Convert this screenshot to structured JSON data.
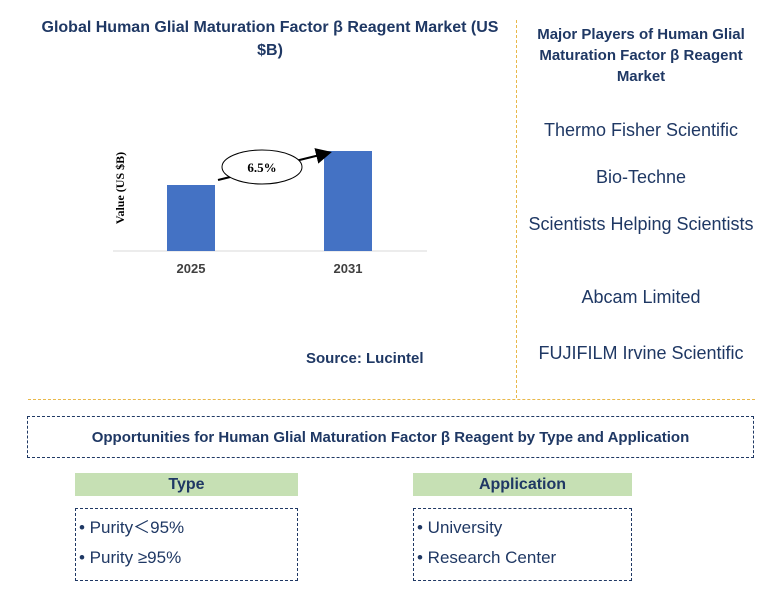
{
  "chart_data": {
    "type": "bar",
    "title": "Global Human Glial Maturation Factor β Reagent Market (US $B)",
    "categories": [
      "2025",
      "2031"
    ],
    "values": [
      0.66,
      1.0
    ],
    "ylabel": "Value (US $B)",
    "xlabel": "",
    "ylim": [
      0,
      1.0
    ],
    "grid": false,
    "bar_color": "#4472C4",
    "annotation": "6.5%"
  },
  "source": "Source: Lucintel",
  "players": {
    "title": "Major Players of Human Glial Maturation Factor β Reagent Market",
    "items": [
      "Thermo Fisher Scientific",
      "Bio-Techne",
      "Scientists Helping Scientists",
      "Abcam Limited",
      "FUJIFILM Irvine Scientific"
    ]
  },
  "opportunities": {
    "title": "Opportunities for Human Glial Maturation Factor β Reagent by Type and Application",
    "type": {
      "header": "Type",
      "items": [
        "• Purity＜95%",
        "• Purity ≥95%"
      ]
    },
    "application": {
      "header": "Application",
      "items": [
        "• University",
        "• Research Center"
      ]
    }
  },
  "colors": {
    "accent": "#1F3864",
    "divider": "#E8B84A",
    "segment_header": "#C6E0B4"
  }
}
